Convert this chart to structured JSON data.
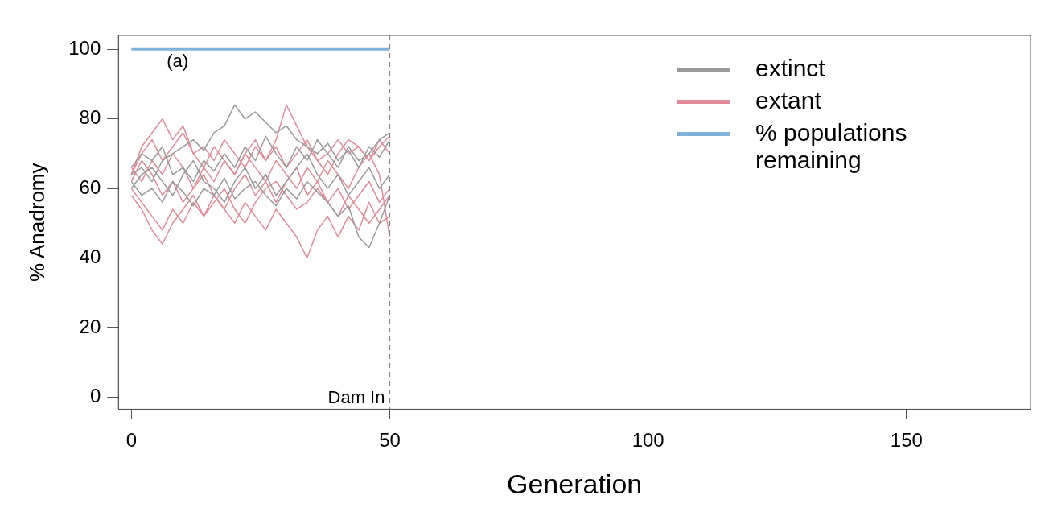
{
  "chart_data": {
    "type": "line",
    "xlabel": "Generation",
    "ylabel": "% Anadromy",
    "x": [
      0,
      2,
      4,
      6,
      8,
      10,
      12,
      14,
      16,
      18,
      20,
      22,
      24,
      26,
      28,
      30,
      32,
      34,
      36,
      38,
      40,
      42,
      44,
      46,
      48,
      50
    ],
    "series": [
      {
        "name": "extinct",
        "color": "#9a9a9a",
        "values": [
          64,
          66,
          62,
          68,
          70,
          72,
          74,
          71,
          76,
          78,
          84,
          80,
          82,
          79,
          76,
          78,
          74,
          72,
          70,
          73,
          68,
          71,
          66,
          72,
          69,
          74
        ]
      },
      {
        "color": "#9a9a9a",
        "values": [
          62,
          58,
          60,
          56,
          62,
          59,
          55,
          60,
          58,
          63,
          57,
          60,
          62,
          58,
          55,
          60,
          57,
          62,
          59,
          56,
          52,
          55,
          46,
          43,
          50,
          58
        ]
      },
      {
        "color": "#9a9a9a",
        "values": [
          66,
          70,
          68,
          72,
          64,
          66,
          62,
          68,
          65,
          70,
          66,
          72,
          68,
          75,
          70,
          66,
          72,
          68,
          74,
          70,
          66,
          72,
          68,
          70,
          74,
          76
        ]
      },
      {
        "color": "#9a9a9a",
        "values": [
          60,
          64,
          66,
          62,
          58,
          64,
          68,
          62,
          60,
          56,
          62,
          66,
          60,
          64,
          58,
          62,
          66,
          70,
          64,
          60,
          64,
          58,
          62,
          66,
          60,
          64
        ]
      },
      {
        "name": "extant",
        "color": "#e58a98",
        "values": [
          64,
          72,
          76,
          80,
          74,
          78,
          70,
          72,
          68,
          74,
          70,
          66,
          72,
          68,
          74,
          84,
          78,
          72,
          68,
          70,
          74,
          70,
          72,
          68,
          74,
          70
        ]
      },
      {
        "color": "#e58a98",
        "values": [
          60,
          56,
          52,
          48,
          54,
          50,
          56,
          52,
          58,
          54,
          50,
          56,
          52,
          48,
          54,
          50,
          46,
          40,
          48,
          52,
          46,
          52,
          48,
          56,
          50,
          52
        ]
      },
      {
        "color": "#e58a98",
        "values": [
          66,
          62,
          68,
          64,
          70,
          66,
          60,
          66,
          62,
          68,
          64,
          70,
          66,
          62,
          68,
          64,
          60,
          66,
          62,
          68,
          64,
          60,
          66,
          70,
          64,
          46
        ]
      },
      {
        "color": "#e58a98",
        "values": [
          62,
          68,
          64,
          58,
          62,
          56,
          60,
          64,
          58,
          54,
          60,
          64,
          58,
          62,
          56,
          62,
          66,
          58,
          62,
          56,
          60,
          54,
          58,
          62,
          56,
          60
        ]
      },
      {
        "color": "#e58a98",
        "values": [
          64,
          70,
          74,
          68,
          72,
          76,
          70,
          66,
          72,
          68,
          64,
          70,
          74,
          68,
          72,
          66,
          70,
          74,
          68,
          64,
          70,
          74,
          72,
          68,
          72,
          75
        ]
      },
      {
        "color": "#e58a98",
        "values": [
          58,
          54,
          48,
          44,
          50,
          54,
          58,
          52,
          56,
          60,
          54,
          50,
          56,
          60,
          62,
          58,
          54,
          56,
          60,
          56,
          52,
          58,
          54,
          50,
          54,
          58
        ]
      },
      {
        "name": "% populations remaining",
        "color": "#7fb3dc",
        "x": [
          0,
          50
        ],
        "values": [
          100,
          100
        ]
      }
    ],
    "xlim": [
      -2.5,
      174
    ],
    "ylim": [
      -3.5,
      104
    ],
    "xticks": [
      0,
      50,
      100,
      150
    ],
    "yticks": [
      0,
      20,
      40,
      60,
      80,
      100
    ],
    "ref_lines": [
      {
        "axis": "x",
        "value": 50,
        "label": "Dam In",
        "line_style": "dashed",
        "color": "#808080"
      }
    ],
    "annotations": [
      "(a)"
    ],
    "legend": "top right",
    "grid": false
  }
}
